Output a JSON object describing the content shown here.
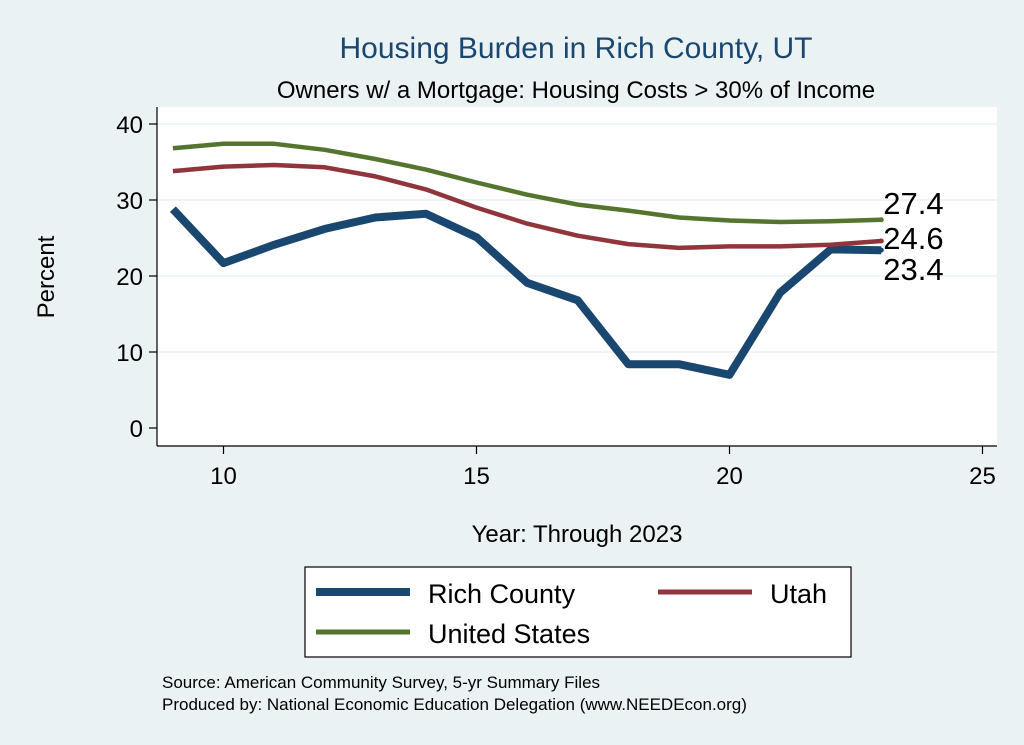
{
  "chart_data": {
    "type": "line",
    "title": "Housing Burden in Rich County, UT",
    "subtitle": "Owners w/ a Mortgage: Housing Costs > 30% of Income",
    "xlabel": "Year: Through 2023",
    "ylabel": "Percent",
    "xlim": [
      9,
      25
    ],
    "ylim": [
      0,
      40
    ],
    "xticks": [
      10,
      15,
      20,
      25
    ],
    "yticks": [
      0,
      10,
      20,
      30,
      40
    ],
    "grid": true,
    "x": [
      9,
      10,
      11,
      12,
      13,
      14,
      15,
      16,
      17,
      18,
      19,
      20,
      21,
      22,
      23
    ],
    "series": [
      {
        "name": "Rich County",
        "color": "#1a476f",
        "values": [
          28.8,
          21.7,
          24.1,
          26.2,
          27.7,
          28.2,
          25.1,
          19.1,
          16.8,
          8.4,
          8.4,
          7.0,
          17.8,
          23.5,
          23.4
        ],
        "end_label": "23.4"
      },
      {
        "name": "Utah",
        "color": "#90353b",
        "values": [
          33.8,
          34.4,
          34.6,
          34.3,
          33.1,
          31.4,
          29.0,
          26.9,
          25.3,
          24.2,
          23.7,
          23.9,
          23.9,
          24.1,
          24.6
        ],
        "end_label": "24.6"
      },
      {
        "name": "United States",
        "color": "#55752f",
        "values": [
          36.8,
          37.4,
          37.4,
          36.6,
          35.4,
          34.0,
          32.3,
          30.7,
          29.4,
          28.6,
          27.7,
          27.3,
          27.1,
          27.2,
          27.4
        ],
        "end_label": "27.4"
      }
    ],
    "legend": {
      "position": "bottom",
      "entries": [
        "Rich County",
        "Utah",
        "United States"
      ]
    },
    "notes": [
      "Source: American Community Survey, 5-yr Summary Files",
      "Produced by: National Economic Education Delegation (www.NEEDEcon.org)"
    ]
  }
}
